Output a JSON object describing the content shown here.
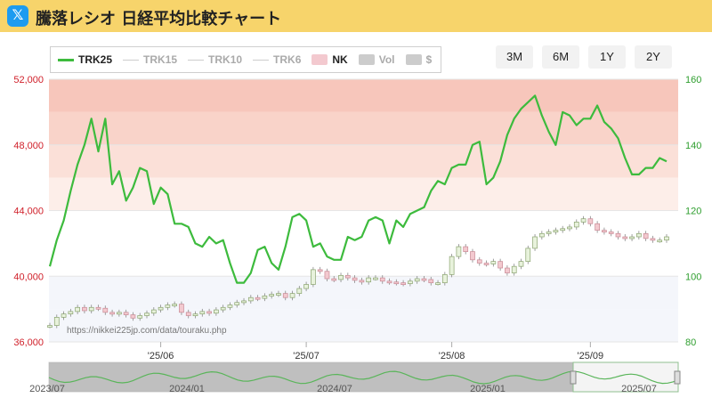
{
  "header": {
    "title": "騰落レシオ 日経平均比較チャート",
    "logo_icon": "x-logo-icon",
    "bg": "#f7d46b"
  },
  "legend": {
    "items": [
      {
        "label": "TRK25",
        "type": "line",
        "color": "#3dbb3d",
        "active": true
      },
      {
        "label": "TRK15",
        "type": "line",
        "color": "#cccccc",
        "active": false
      },
      {
        "label": "TRK10",
        "type": "line",
        "color": "#cccccc",
        "active": false
      },
      {
        "label": "TRK6",
        "type": "line",
        "color": "#cccccc",
        "active": false
      },
      {
        "label": "NK",
        "type": "box",
        "color": "#f3c9cf",
        "active": true
      },
      {
        "label": "Vol",
        "type": "box",
        "color": "#cccccc",
        "active": false
      },
      {
        "label": "$",
        "type": "box",
        "color": "#cccccc",
        "active": false
      }
    ]
  },
  "range_buttons": [
    "3M",
    "6M",
    "1Y",
    "2Y"
  ],
  "watermark": "https://nikkei225jp.com/data/touraku.php",
  "chart_data": {
    "type": "line",
    "left_axis": {
      "ticks": [
        "36,000",
        "40,000",
        "44,000",
        "48,000",
        "52,000"
      ],
      "min": 36000,
      "max": 52000,
      "color": "#d0202a"
    },
    "right_axis": {
      "ticks": [
        "80",
        "100",
        "120",
        "140",
        "160"
      ],
      "min": 80,
      "max": 160,
      "color": "#2e9e2e"
    },
    "x_ticks": [
      "'25/06",
      "'25/07",
      "'25/08",
      "'25/09"
    ],
    "trk25": [
      103,
      111,
      117,
      126,
      134,
      140,
      148,
      138,
      148,
      128,
      132,
      123,
      127,
      133,
      132,
      122,
      127,
      125,
      116,
      116,
      115,
      110,
      109,
      112,
      110,
      111,
      104,
      98,
      98,
      101,
      108,
      109,
      104,
      102,
      109,
      118,
      119,
      117,
      109,
      110,
      106,
      105,
      105,
      112,
      111,
      112,
      117,
      118,
      117,
      110,
      117,
      115,
      119,
      120,
      121,
      126,
      129,
      128,
      133,
      134,
      134,
      140,
      141,
      128,
      130,
      135,
      143,
      148,
      151,
      153,
      155,
      149,
      144,
      140,
      150,
      149,
      146,
      148,
      148,
      152,
      147,
      145,
      142,
      136,
      131,
      131,
      133,
      133,
      136,
      135
    ],
    "nikkei": [
      37000,
      37500,
      37700,
      37850,
      38100,
      37900,
      38100,
      38050,
      37800,
      37700,
      37800,
      37650,
      37450,
      37600,
      37750,
      37950,
      38100,
      38250,
      38300,
      37800,
      37600,
      37700,
      37850,
      37750,
      37950,
      38100,
      38250,
      38400,
      38500,
      38700,
      38650,
      38800,
      38900,
      38950,
      38700,
      38950,
      39250,
      39500,
      40400,
      40300,
      39850,
      39800,
      40050,
      39900,
      39750,
      39650,
      39900,
      39900,
      39700,
      39650,
      39600,
      39550,
      39700,
      39850,
      39800,
      39600,
      39600,
      40100,
      41200,
      41800,
      41500,
      41000,
      40800,
      40750,
      40900,
      40500,
      40200,
      40600,
      40900,
      41700,
      42400,
      42600,
      42700,
      42800,
      42900,
      43000,
      43300,
      43500,
      43200,
      42800,
      42700,
      42600,
      42400,
      42300,
      42400,
      42600,
      42300,
      42200,
      42200,
      42400
    ]
  },
  "navigator": {
    "labels": [
      "2023/07",
      "2024/01",
      "2024/07",
      "2025/01",
      "2025/07"
    ]
  }
}
